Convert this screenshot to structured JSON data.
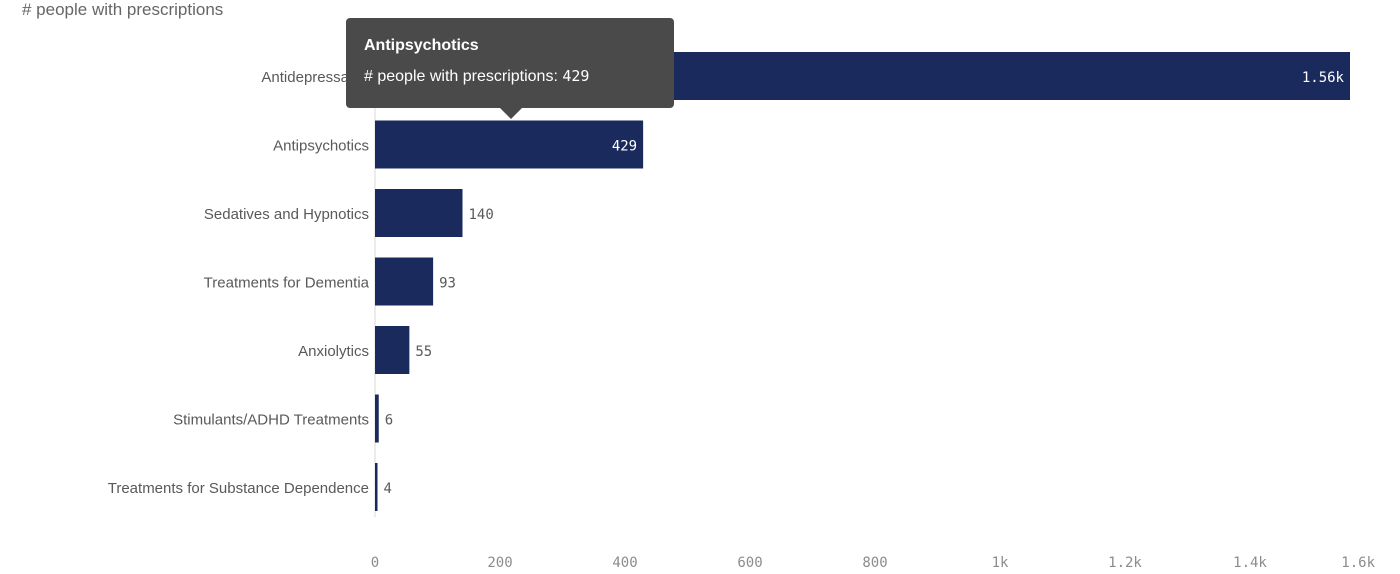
{
  "chart_data": {
    "type": "bar",
    "orientation": "horizontal",
    "title": "# people with prescriptions",
    "categories": [
      "Antidepressants",
      "Antipsychotics",
      "Sedatives and Hypnotics",
      "Treatments for Dementia",
      "Anxiolytics",
      "Stimulants/ADHD Treatments",
      "Treatments for Substance Dependence"
    ],
    "values": [
      1560,
      429,
      140,
      93,
      55,
      6,
      4
    ],
    "value_labels": [
      "1.56k",
      "429",
      "140",
      "93",
      "55",
      "6",
      "4"
    ],
    "xlim": [
      0,
      1600
    ],
    "x_ticks": [
      0,
      200,
      400,
      600,
      800,
      1000,
      1200,
      1400,
      1600
    ],
    "x_tick_labels": [
      "0",
      "200",
      "400",
      "600",
      "800",
      "1k",
      "1.2k",
      "1.4k",
      "1.6k"
    ],
    "grid": false,
    "bar_color": "#1b2a5c"
  },
  "tooltip": {
    "title": "Antipsychotics",
    "label": "# people with prescriptions:",
    "value": "429"
  }
}
